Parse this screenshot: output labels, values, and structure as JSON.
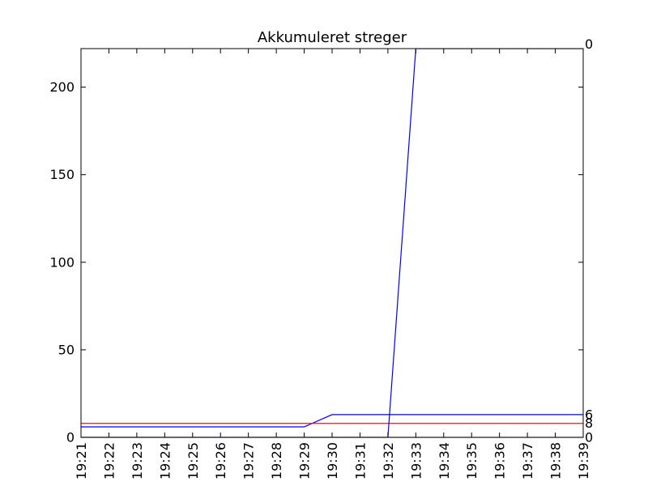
{
  "chart_data": {
    "type": "line",
    "title": "Akkumuleret streger",
    "xlabel": "",
    "ylabel": "",
    "categories": [
      "19:21",
      "19:22",
      "19:23",
      "19:24",
      "19:25",
      "19:26",
      "19:27",
      "19:28",
      "19:29",
      "19:30",
      "19:31",
      "19:32",
      "19:33",
      "19:34",
      "19:35",
      "19:36",
      "19:37",
      "19:38",
      "19:39"
    ],
    "ylim": [
      0,
      222
    ],
    "yticks": [
      0,
      50,
      100,
      150,
      200
    ],
    "grid": false,
    "series": [
      {
        "color": "#0000ff",
        "values": [
          6,
          6,
          6,
          6,
          6,
          6,
          6,
          6,
          6,
          13,
          13,
          13,
          13,
          13,
          13,
          13,
          13,
          13,
          13
        ],
        "end_label": "6"
      },
      {
        "color": "#ff0000",
        "values": [
          8,
          8,
          8,
          8,
          8,
          8,
          8,
          8,
          8,
          8,
          8,
          8,
          8,
          8,
          8,
          8,
          8,
          8,
          8
        ],
        "end_label": "8"
      },
      {
        "color": "#0000ff",
        "values": [
          0,
          0,
          0,
          0,
          0,
          0,
          0,
          0,
          0,
          0,
          0,
          0,
          222,
          222,
          222,
          222,
          222,
          222,
          222
        ],
        "end_label": "0"
      },
      {
        "color": "#000000",
        "values": [
          0,
          0,
          0,
          0,
          0,
          0,
          0,
          0,
          0,
          0,
          0,
          0,
          0,
          0,
          0,
          0,
          0,
          0,
          0
        ],
        "end_label": "0"
      }
    ],
    "top_end_label": "0"
  }
}
